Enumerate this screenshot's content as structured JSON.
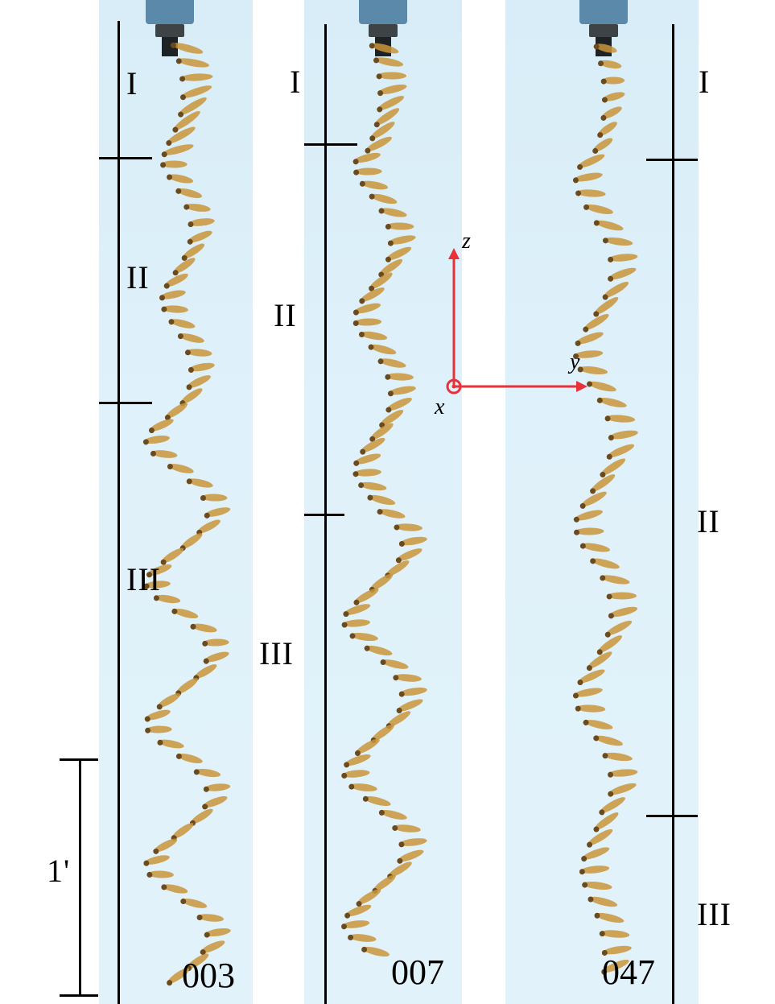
{
  "panels": [
    {
      "id": "003",
      "regions": [
        "I",
        "II",
        "III"
      ]
    },
    {
      "id": "007",
      "regions": [
        "I",
        "II",
        "III"
      ]
    },
    {
      "id": "047",
      "regions": [
        "I",
        "II",
        "III"
      ]
    }
  ],
  "scale_bar": {
    "label": "1'"
  },
  "axes": {
    "z": "z",
    "y": "y",
    "x": "x",
    "color": "#e8323a"
  },
  "colors": {
    "background": "#dff1fa",
    "seed": "#c9953a",
    "seed_dark": "#6b4a1e",
    "holder": "#5a89a9"
  }
}
